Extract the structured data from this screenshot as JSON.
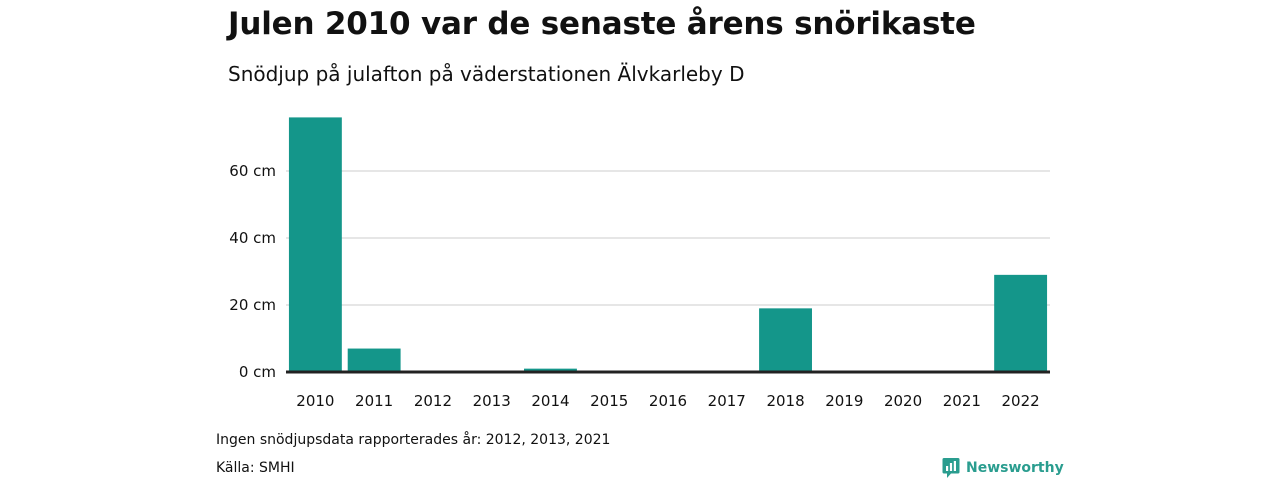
{
  "title": "Julen 2010 var de senaste årens snörikaste",
  "subtitle": "Snödjup på julafton på väderstationen Älvkarleby D",
  "note": "Ingen snödjupsdata rapporterades år: 2012, 2013, 2021",
  "source": "Källa: SMHI",
  "brand": {
    "name": "Newsworthy",
    "icon": "newsworthy-logo-icon",
    "color": "#2a9d8f"
  },
  "colors": {
    "bar": "#14968a",
    "grid": "#dddddd",
    "axis": "#222222"
  },
  "chart_data": {
    "type": "bar",
    "categories": [
      "2010",
      "2011",
      "2012",
      "2013",
      "2014",
      "2015",
      "2016",
      "2017",
      "2018",
      "2019",
      "2020",
      "2021",
      "2022"
    ],
    "values": [
      76,
      7,
      0,
      0,
      1,
      0,
      0,
      0,
      19,
      0,
      0,
      0,
      29
    ],
    "yticks": [
      0,
      20,
      40,
      60
    ],
    "ytick_labels": [
      "0 cm",
      "20 cm",
      "40 cm",
      "60 cm"
    ],
    "ylim": [
      0,
      80
    ],
    "grid": true,
    "title": "Julen 2010 var de senaste årens snörikaste",
    "xlabel": "",
    "ylabel": ""
  }
}
